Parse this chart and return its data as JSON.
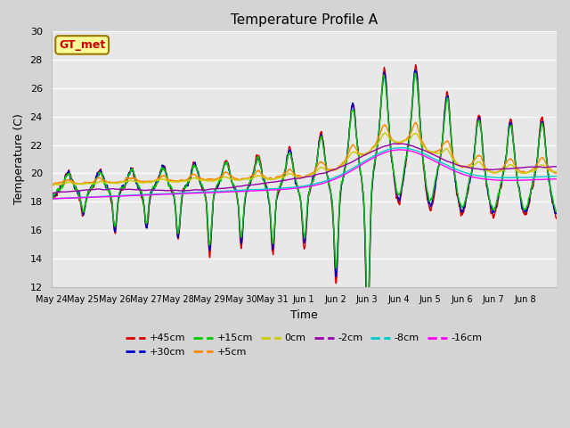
{
  "title": "Temperature Profile A",
  "xlabel": "Time",
  "ylabel": "Temperature (C)",
  "ylim": [
    12,
    30
  ],
  "yticks": [
    12,
    14,
    16,
    18,
    20,
    22,
    24,
    26,
    28,
    30
  ],
  "annotation_text": "GT_met",
  "annotation_color": "#cc0000",
  "annotation_bg": "#ffff99",
  "annotation_border": "#997700",
  "tick_labels": [
    "May 24",
    "May 25",
    "May 26",
    "May 27",
    "May 28",
    "May 29",
    "May 30",
    "May 31",
    "Jun 1",
    "Jun 2",
    "Jun 3",
    "Jun 4",
    "Jun 5",
    "Jun 6",
    "Jun 7",
    "Jun 8"
  ],
  "series": [
    {
      "label": "+45cm",
      "color": "#dd0000",
      "lw": 1.0
    },
    {
      "label": "+30cm",
      "color": "#0000cc",
      "lw": 1.0
    },
    {
      "label": "+15cm",
      "color": "#00cc00",
      "lw": 1.0
    },
    {
      "label": "+5cm",
      "color": "#ff8800",
      "lw": 1.0
    },
    {
      "label": "0cm",
      "color": "#cccc00",
      "lw": 1.0
    },
    {
      "label": "-2cm",
      "color": "#9900aa",
      "lw": 1.0
    },
    {
      "label": "-8cm",
      "color": "#00cccc",
      "lw": 1.0
    },
    {
      "label": "-16cm",
      "color": "#ff00ff",
      "lw": 1.0
    }
  ],
  "fig_bg": "#d4d4d4",
  "plot_bg": "#e8e8e8",
  "grid_color": "#ffffff",
  "n_days": 16,
  "ppd": 144
}
